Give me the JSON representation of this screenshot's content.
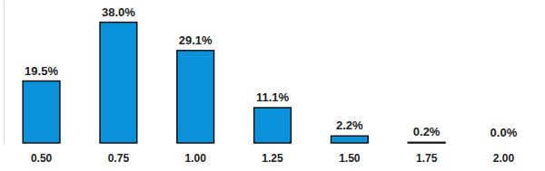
{
  "chart_data": {
    "type": "bar",
    "categories": [
      "0.50",
      "0.75",
      "1.00",
      "1.25",
      "1.50",
      "1.75",
      "2.00"
    ],
    "values": [
      19.5,
      38.0,
      29.1,
      11.1,
      2.2,
      0.2,
      0.0
    ],
    "value_labels": [
      "19.5%",
      "38.0%",
      "29.1%",
      "11.1%",
      "2.2%",
      "0.2%",
      "0.0%"
    ],
    "color": "#0a93db",
    "ylim": [
      0,
      45
    ],
    "data_labels": true,
    "tick_labels": "x"
  }
}
